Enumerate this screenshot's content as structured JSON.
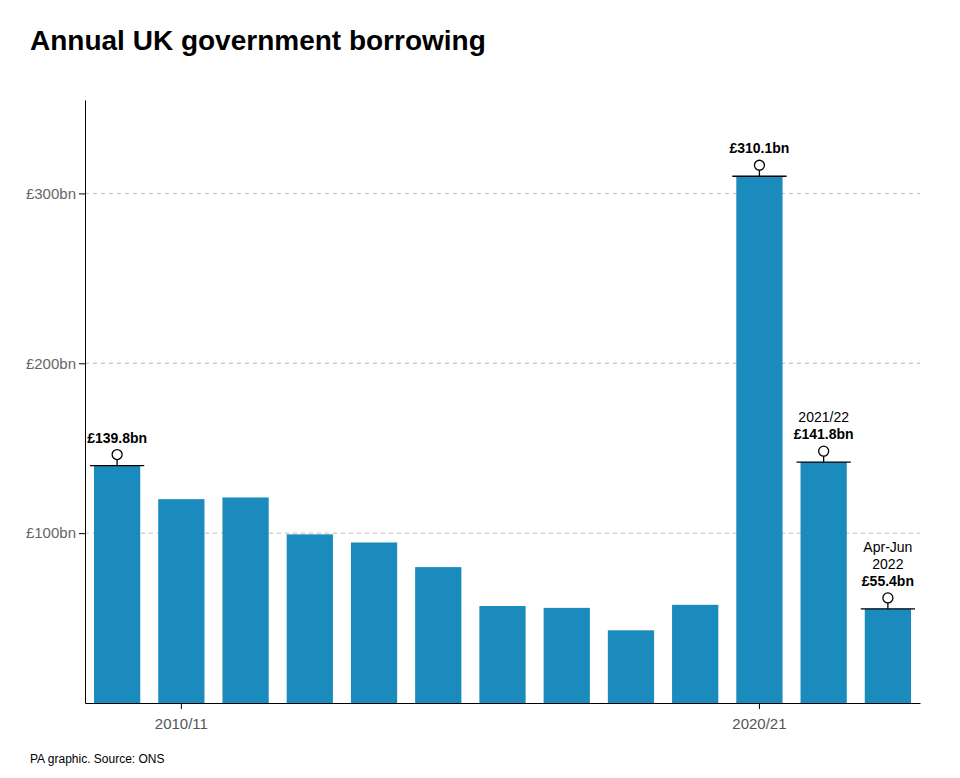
{
  "chart_data": {
    "type": "bar",
    "title": "Annual UK government borrowing",
    "categories": [
      null,
      "2010/11",
      null,
      null,
      null,
      null,
      null,
      null,
      null,
      null,
      "2020/21",
      null,
      null
    ],
    "values": [
      139.8,
      120.0,
      121.0,
      99.3,
      94.5,
      80.0,
      57.1,
      56.0,
      42.8,
      57.8,
      310.1,
      141.8,
      55.4
    ],
    "value_labels": [
      "£139.8bn",
      null,
      null,
      null,
      null,
      null,
      null,
      null,
      null,
      null,
      "£310.1bn",
      "£141.8bn",
      "£55.4bn"
    ],
    "data_labels": true,
    "color": "#1B8BBE",
    "ylim": [
      0,
      355
    ],
    "yticks": [
      {
        "value": 100,
        "label": "£100bn"
      },
      {
        "value": 200,
        "label": "£200bn"
      },
      {
        "value": 300,
        "label": "£300bn"
      }
    ],
    "grid": true,
    "annotations": [
      {
        "text": "2021/22",
        "x": 11
      },
      {
        "text": "Apr-Jun\n2022",
        "x": 12
      },
      {
        "text": "PA graphic. Source: ONS"
      }
    ]
  }
}
